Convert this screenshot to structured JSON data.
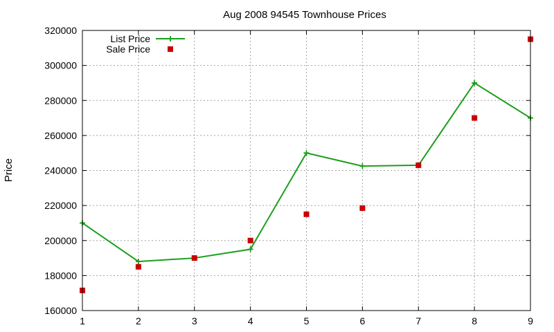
{
  "chart_data": {
    "type": "line",
    "title": "Aug 2008 94545 Townhouse Prices",
    "xlabel": "",
    "ylabel": "Price",
    "x": [
      1,
      2,
      3,
      4,
      5,
      6,
      7,
      8,
      9
    ],
    "xlim": [
      1,
      9
    ],
    "ylim": [
      160000,
      320000
    ],
    "x_ticks": [
      "1",
      "2",
      "3",
      "4",
      "5",
      "6",
      "7",
      "8",
      "9"
    ],
    "y_ticks": [
      "160000",
      "180000",
      "200000",
      "220000",
      "240000",
      "260000",
      "280000",
      "300000",
      "320000"
    ],
    "grid": true,
    "legend_position": "top-left",
    "series": [
      {
        "name": "List Price",
        "style": "line-with-plus-markers",
        "color": "#1a9e1a",
        "values": [
          210000,
          188000,
          190000,
          195000,
          250000,
          242500,
          243000,
          290000,
          270000
        ]
      },
      {
        "name": "Sale Price",
        "style": "square-markers",
        "color": "#cc0000",
        "values": [
          171500,
          185000,
          190000,
          200000,
          215000,
          218500,
          243000,
          270000,
          315000
        ]
      }
    ]
  }
}
